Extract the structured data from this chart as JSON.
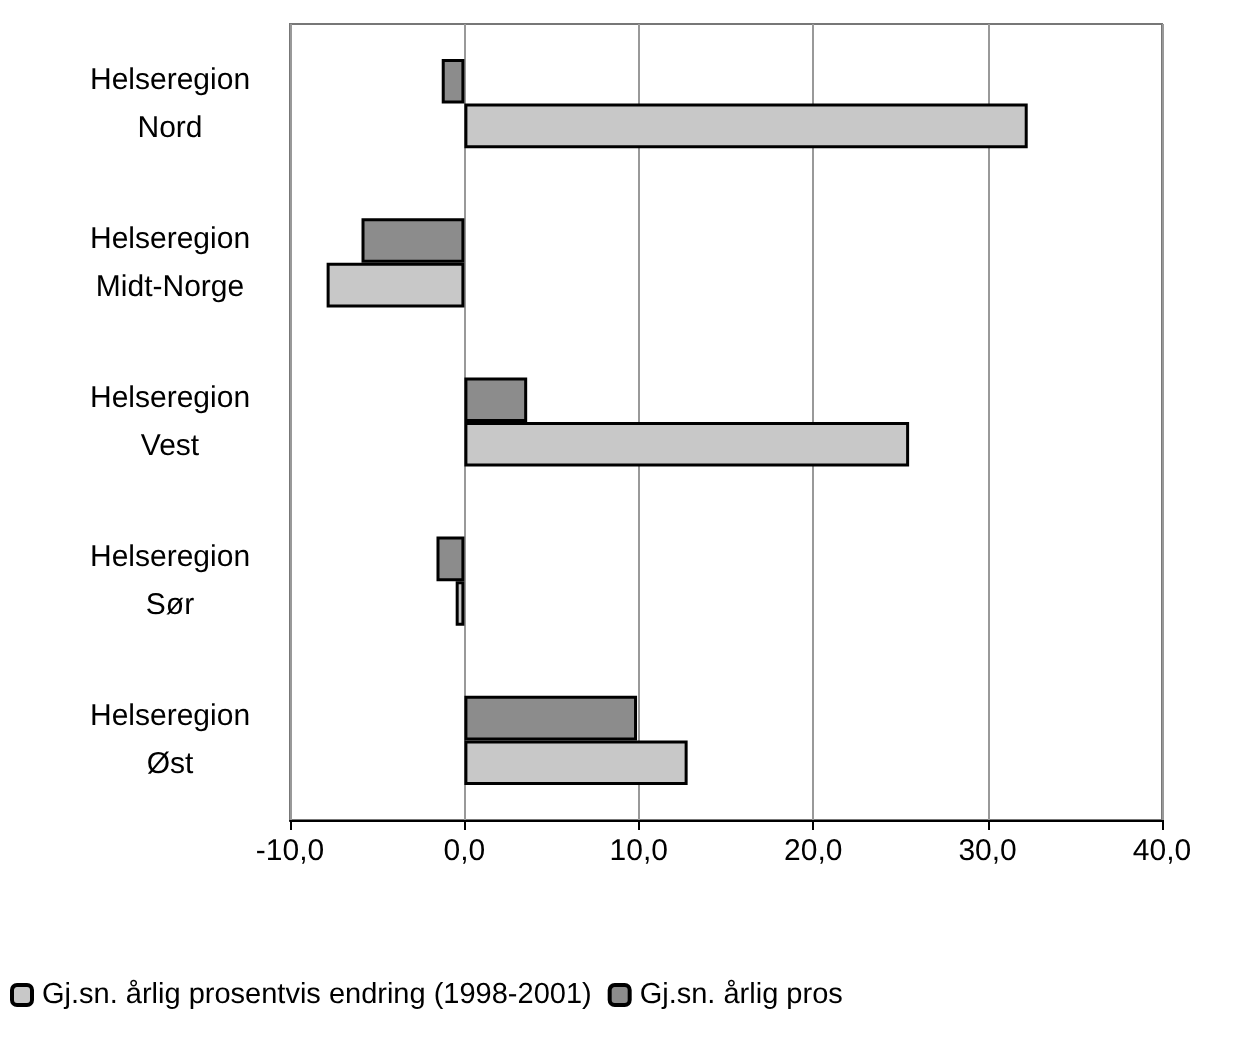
{
  "chart_data": {
    "type": "bar",
    "orientation": "horizontal",
    "categories": [
      "Helseregion\nNord",
      "Helseregion\nMidt-Norge",
      "Helseregion\nVest",
      "Helseregion\nSør",
      "Helseregion\nØst"
    ],
    "series": [
      {
        "name": "Gj.sn. årlig prosentvis endring (1998-2001)",
        "color": "#c8c8c8",
        "values": [
          32.3,
          -7.9,
          25.5,
          -0.5,
          12.8
        ]
      },
      {
        "name": "Gj.sn. årlig pros",
        "color": "#8c8c8c",
        "values": [
          -1.3,
          -5.9,
          3.6,
          -1.6,
          9.9
        ]
      }
    ],
    "xlim": [
      -10,
      40
    ],
    "xticks": [
      {
        "value": -10,
        "label": "-10,0"
      },
      {
        "value": 0,
        "label": "0,0"
      },
      {
        "value": 10,
        "label": "10,0"
      },
      {
        "value": 20,
        "label": "20,0"
      },
      {
        "value": 30,
        "label": "30,0"
      },
      {
        "value": 40,
        "label": "40,0"
      }
    ],
    "grid": "x",
    "legend": "bottom"
  }
}
